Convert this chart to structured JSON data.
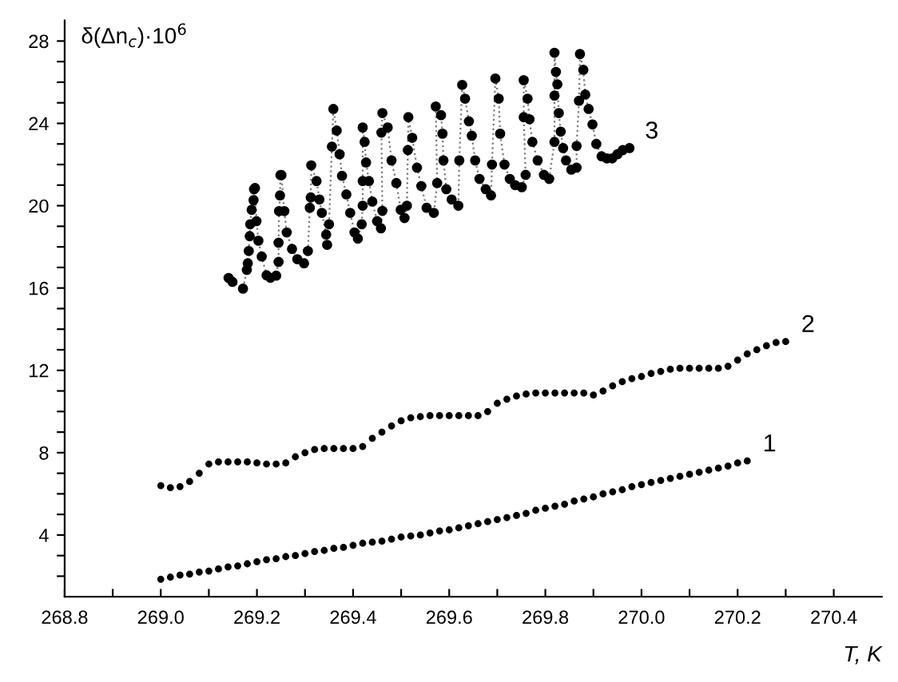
{
  "chart_data": {
    "type": "scatter",
    "ylabel": "δ(Δn$_{c}$)·10$^{6}$",
    "xlabel": "T, K",
    "xlim": [
      268.8,
      270.5
    ],
    "ylim": [
      1,
      29
    ],
    "xticks": [
      268.8,
      {
        "value": 268.9,
        "label": null
      },
      {
        "value": 269,
        "label": "269.0"
      },
      {
        "value": 269.1,
        "label": null
      },
      269.2,
      {
        "value": 269.3,
        "label": null
      },
      269.4,
      {
        "value": 269.5,
        "label": null
      },
      269.6,
      {
        "value": 269.7,
        "label": null
      },
      269.8,
      {
        "value": 269.9,
        "label": null
      },
      {
        "value": 270,
        "label": "270.0"
      },
      {
        "value": 270.1,
        "label": null
      },
      270.2,
      {
        "value": 270.3,
        "label": null
      },
      270.4
    ],
    "yticks": [
      {
        "value": 2,
        "label": null
      },
      {
        "value": 3,
        "label": null
      },
      4,
      {
        "value": 5,
        "label": null
      },
      {
        "value": 6,
        "label": null
      },
      {
        "value": 7,
        "label": null
      },
      8,
      {
        "value": 9,
        "label": null
      },
      {
        "value": 10,
        "label": null
      },
      {
        "value": 11,
        "label": null
      },
      12,
      {
        "value": 13,
        "label": null
      },
      {
        "value": 14,
        "label": null
      },
      {
        "value": 15,
        "label": null
      },
      16,
      {
        "value": 17,
        "label": null
      },
      {
        "value": 18,
        "label": null
      },
      {
        "value": 19,
        "label": null
      },
      20,
      {
        "value": 21,
        "label": null
      },
      {
        "value": 22,
        "label": null
      },
      {
        "value": 23,
        "label": null
      },
      24,
      {
        "value": 25,
        "label": null
      },
      {
        "value": 26,
        "label": null
      },
      {
        "value": 27,
        "label": null
      },
      28
    ],
    "grid": false,
    "legend": false,
    "marker": "circle",
    "series": [
      {
        "name": "1",
        "color": "#000000",
        "x": [
          269.0,
          269.02,
          269.04,
          269.06,
          269.08,
          269.1,
          269.12,
          269.14,
          269.16,
          269.18,
          269.2,
          269.22,
          269.24,
          269.26,
          269.28,
          269.3,
          269.32,
          269.34,
          269.36,
          269.38,
          269.4,
          269.42,
          269.44,
          269.46,
          269.48,
          269.5,
          269.52,
          269.54,
          269.56,
          269.58,
          269.6,
          269.62,
          269.64,
          269.66,
          269.68,
          269.7,
          269.72,
          269.74,
          269.76,
          269.78,
          269.8,
          269.82,
          269.84,
          269.86,
          269.88,
          269.9,
          269.92,
          269.94,
          269.96,
          269.98,
          270.0,
          270.02,
          270.04,
          270.06,
          270.08,
          270.1,
          270.12,
          270.14,
          270.16,
          270.18,
          270.2,
          270.22
        ],
        "values": [
          1.85,
          1.95,
          2.05,
          2.1,
          2.2,
          2.25,
          2.35,
          2.45,
          2.5,
          2.6,
          2.7,
          2.8,
          2.85,
          2.95,
          3.0,
          3.1,
          3.2,
          3.25,
          3.35,
          3.4,
          3.5,
          3.6,
          3.65,
          3.7,
          3.8,
          3.9,
          3.95,
          4.0,
          4.1,
          4.2,
          4.25,
          4.35,
          4.45,
          4.55,
          4.65,
          4.75,
          4.85,
          4.95,
          5.05,
          5.2,
          5.3,
          5.4,
          5.5,
          5.65,
          5.75,
          5.85,
          6.0,
          6.1,
          6.2,
          6.35,
          6.45,
          6.55,
          6.65,
          6.75,
          6.85,
          6.95,
          7.05,
          7.15,
          7.25,
          7.35,
          7.5,
          7.6
        ]
      },
      {
        "name": "2",
        "color": "#000000",
        "x": [
          269.0,
          269.02,
          269.04,
          269.06,
          269.08,
          269.1,
          269.12,
          269.14,
          269.16,
          269.18,
          269.2,
          269.22,
          269.24,
          269.26,
          269.28,
          269.3,
          269.32,
          269.34,
          269.36,
          269.38,
          269.4,
          269.42,
          269.44,
          269.46,
          269.48,
          269.5,
          269.52,
          269.54,
          269.56,
          269.58,
          269.6,
          269.62,
          269.64,
          269.66,
          269.68,
          269.7,
          269.72,
          269.74,
          269.76,
          269.78,
          269.8,
          269.82,
          269.84,
          269.86,
          269.88,
          269.9,
          269.92,
          269.94,
          269.96,
          269.98,
          270.0,
          270.02,
          270.04,
          270.06,
          270.08,
          270.1,
          270.12,
          270.14,
          270.16,
          270.18,
          270.2,
          270.22,
          270.24,
          270.26,
          270.28,
          270.3
        ],
        "values": [
          6.4,
          6.3,
          6.35,
          6.6,
          7.0,
          7.45,
          7.55,
          7.55,
          7.55,
          7.55,
          7.5,
          7.45,
          7.45,
          7.5,
          7.8,
          8.0,
          8.15,
          8.2,
          8.2,
          8.2,
          8.2,
          8.3,
          8.7,
          9.0,
          9.3,
          9.55,
          9.7,
          9.75,
          9.8,
          9.8,
          9.8,
          9.8,
          9.8,
          9.8,
          10.0,
          10.4,
          10.6,
          10.75,
          10.85,
          10.9,
          10.9,
          10.9,
          10.9,
          10.9,
          10.9,
          10.8,
          11.0,
          11.25,
          11.45,
          11.6,
          11.7,
          11.85,
          11.95,
          12.05,
          12.1,
          12.1,
          12.1,
          12.1,
          12.1,
          12.2,
          12.5,
          12.8,
          13.0,
          13.2,
          13.35,
          13.4
        ]
      },
      {
        "name": "3",
        "color": "#000000",
        "type": "line",
        "line_style": "dotted",
        "x": [
          269.141,
          269.149,
          269.171,
          269.179,
          269.181,
          269.183,
          269.185,
          269.186,
          269.189,
          269.193,
          269.194,
          269.196,
          269.199,
          269.203,
          269.21,
          269.22,
          269.228,
          269.24,
          269.245,
          269.245,
          269.246,
          269.248,
          269.249,
          269.251,
          269.257,
          269.262,
          269.273,
          269.284,
          269.298,
          269.306,
          269.31,
          269.312,
          269.313,
          269.324,
          269.33,
          269.335,
          269.344,
          269.346,
          269.35,
          269.356,
          269.359,
          269.366,
          269.372,
          269.377,
          269.386,
          269.394,
          269.403,
          269.41,
          269.418,
          269.42,
          269.42,
          269.42,
          269.424,
          269.427,
          269.433,
          269.44,
          269.45,
          269.458,
          269.461,
          269.459,
          269.461,
          269.472,
          269.48,
          269.49,
          269.499,
          269.507,
          269.512,
          269.514,
          269.515,
          269.523,
          269.533,
          269.542,
          269.553,
          269.568,
          269.575,
          269.572,
          269.583,
          269.586,
          269.588,
          269.594,
          269.605,
          269.619,
          269.621,
          269.627,
          269.633,
          269.641,
          269.647,
          269.654,
          269.663,
          269.676,
          269.687,
          269.689,
          269.696,
          269.703,
          269.706,
          269.715,
          269.726,
          269.737,
          269.751,
          269.759,
          269.755,
          269.755,
          269.763,
          269.767,
          269.773,
          269.784,
          269.797,
          269.808,
          269.819,
          269.819,
          269.819,
          269.822,
          269.825,
          269.828,
          269.832,
          269.837,
          269.843,
          269.854,
          269.865,
          269.865,
          269.87,
          269.872,
          269.879,
          269.883,
          269.89,
          269.898,
          269.906,
          269.917,
          269.928,
          269.939,
          269.95,
          269.961,
          269.975
        ],
        "values": [
          16.49,
          16.3,
          15.97,
          16.88,
          17.2,
          17.8,
          18.52,
          19.1,
          19.8,
          20.27,
          20.8,
          20.86,
          19.25,
          18.3,
          17.53,
          16.62,
          16.5,
          16.6,
          17.27,
          18.2,
          19.74,
          20.5,
          21.49,
          21.49,
          19.74,
          18.7,
          17.9,
          17.4,
          17.2,
          17.8,
          19.9,
          20.4,
          21.96,
          21.2,
          20.3,
          19.65,
          18.6,
          18.1,
          19.1,
          22.87,
          24.7,
          23.65,
          22.5,
          21.45,
          20.55,
          19.65,
          18.7,
          18.4,
          19.1,
          20.0,
          21.2,
          23.8,
          23.1,
          22.1,
          21.2,
          20.2,
          19.25,
          18.9,
          19.75,
          23.55,
          24.5,
          23.8,
          22.2,
          21.1,
          19.8,
          19.4,
          20.0,
          22.7,
          24.3,
          23.3,
          21.85,
          20.95,
          19.9,
          19.65,
          21.1,
          24.82,
          24.4,
          23.5,
          22.2,
          20.8,
          20.3,
          20.0,
          22.2,
          25.87,
          25.2,
          24.1,
          23.4,
          22.2,
          21.3,
          20.8,
          20.5,
          22.0,
          26.18,
          25.2,
          23.5,
          22.0,
          21.3,
          21.0,
          20.9,
          21.5,
          24.3,
          26.1,
          25.2,
          24.2,
          23.1,
          22.2,
          21.5,
          21.3,
          23.1,
          25.35,
          27.43,
          26.5,
          25.9,
          24.5,
          23.6,
          22.8,
          22.2,
          21.75,
          21.85,
          22.9,
          25.1,
          27.37,
          26.6,
          25.4,
          24.7,
          23.95,
          23.0,
          22.4,
          22.3,
          22.3,
          22.5,
          22.7,
          22.8
        ]
      }
    ]
  }
}
